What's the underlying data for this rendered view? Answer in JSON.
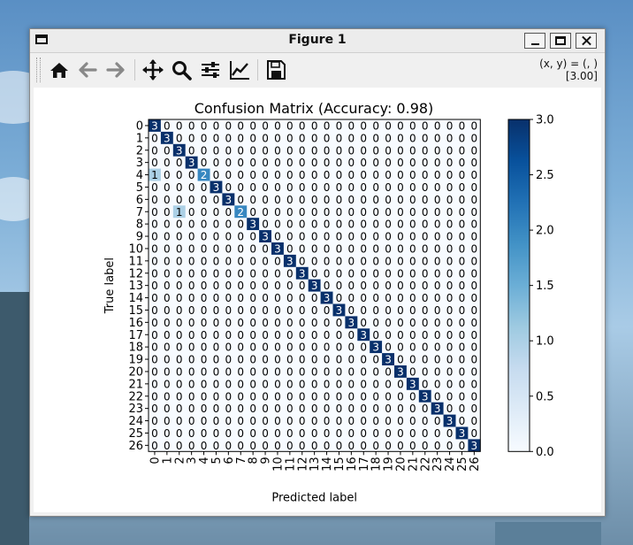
{
  "window": {
    "title": "Figure 1"
  },
  "toolbar": {
    "buttons": [
      {
        "id": "home",
        "icon": "home-icon"
      },
      {
        "id": "back",
        "icon": "arrow-left-icon"
      },
      {
        "id": "forward",
        "icon": "arrow-right-icon"
      },
      {
        "id": "pan",
        "icon": "move-icon"
      },
      {
        "id": "zoom",
        "icon": "zoom-icon"
      },
      {
        "id": "configure",
        "icon": "sliders-icon"
      },
      {
        "id": "edit",
        "icon": "chart-line-icon"
      },
      {
        "id": "save",
        "icon": "save-icon"
      }
    ],
    "coord_line1": "(x, y) = (, )",
    "coord_line2": "[3.00]"
  },
  "chart_data": {
    "type": "heatmap",
    "title": "Confusion Matrix (Accuracy: 0.98)",
    "xlabel": "Predicted label",
    "ylabel": "True label",
    "labels": [
      "0",
      "1",
      "2",
      "3",
      "4",
      "5",
      "6",
      "7",
      "8",
      "9",
      "10",
      "11",
      "12",
      "13",
      "14",
      "15",
      "16",
      "17",
      "18",
      "19",
      "20",
      "21",
      "22",
      "23",
      "24",
      "25",
      "26"
    ],
    "matrix": [
      [
        3,
        0,
        0,
        0,
        0,
        0,
        0,
        0,
        0,
        0,
        0,
        0,
        0,
        0,
        0,
        0,
        0,
        0,
        0,
        0,
        0,
        0,
        0,
        0,
        0,
        0,
        0
      ],
      [
        0,
        3,
        0,
        0,
        0,
        0,
        0,
        0,
        0,
        0,
        0,
        0,
        0,
        0,
        0,
        0,
        0,
        0,
        0,
        0,
        0,
        0,
        0,
        0,
        0,
        0,
        0
      ],
      [
        0,
        0,
        3,
        0,
        0,
        0,
        0,
        0,
        0,
        0,
        0,
        0,
        0,
        0,
        0,
        0,
        0,
        0,
        0,
        0,
        0,
        0,
        0,
        0,
        0,
        0,
        0
      ],
      [
        0,
        0,
        0,
        3,
        0,
        0,
        0,
        0,
        0,
        0,
        0,
        0,
        0,
        0,
        0,
        0,
        0,
        0,
        0,
        0,
        0,
        0,
        0,
        0,
        0,
        0,
        0
      ],
      [
        1,
        0,
        0,
        0,
        2,
        0,
        0,
        0,
        0,
        0,
        0,
        0,
        0,
        0,
        0,
        0,
        0,
        0,
        0,
        0,
        0,
        0,
        0,
        0,
        0,
        0,
        0
      ],
      [
        0,
        0,
        0,
        0,
        0,
        3,
        0,
        0,
        0,
        0,
        0,
        0,
        0,
        0,
        0,
        0,
        0,
        0,
        0,
        0,
        0,
        0,
        0,
        0,
        0,
        0,
        0
      ],
      [
        0,
        0,
        0,
        0,
        0,
        0,
        3,
        0,
        0,
        0,
        0,
        0,
        0,
        0,
        0,
        0,
        0,
        0,
        0,
        0,
        0,
        0,
        0,
        0,
        0,
        0,
        0
      ],
      [
        0,
        0,
        1,
        0,
        0,
        0,
        0,
        2,
        0,
        0,
        0,
        0,
        0,
        0,
        0,
        0,
        0,
        0,
        0,
        0,
        0,
        0,
        0,
        0,
        0,
        0,
        0
      ],
      [
        0,
        0,
        0,
        0,
        0,
        0,
        0,
        0,
        3,
        0,
        0,
        0,
        0,
        0,
        0,
        0,
        0,
        0,
        0,
        0,
        0,
        0,
        0,
        0,
        0,
        0,
        0
      ],
      [
        0,
        0,
        0,
        0,
        0,
        0,
        0,
        0,
        0,
        3,
        0,
        0,
        0,
        0,
        0,
        0,
        0,
        0,
        0,
        0,
        0,
        0,
        0,
        0,
        0,
        0,
        0
      ],
      [
        0,
        0,
        0,
        0,
        0,
        0,
        0,
        0,
        0,
        0,
        3,
        0,
        0,
        0,
        0,
        0,
        0,
        0,
        0,
        0,
        0,
        0,
        0,
        0,
        0,
        0,
        0
      ],
      [
        0,
        0,
        0,
        0,
        0,
        0,
        0,
        0,
        0,
        0,
        0,
        3,
        0,
        0,
        0,
        0,
        0,
        0,
        0,
        0,
        0,
        0,
        0,
        0,
        0,
        0,
        0
      ],
      [
        0,
        0,
        0,
        0,
        0,
        0,
        0,
        0,
        0,
        0,
        0,
        0,
        3,
        0,
        0,
        0,
        0,
        0,
        0,
        0,
        0,
        0,
        0,
        0,
        0,
        0,
        0
      ],
      [
        0,
        0,
        0,
        0,
        0,
        0,
        0,
        0,
        0,
        0,
        0,
        0,
        0,
        3,
        0,
        0,
        0,
        0,
        0,
        0,
        0,
        0,
        0,
        0,
        0,
        0,
        0
      ],
      [
        0,
        0,
        0,
        0,
        0,
        0,
        0,
        0,
        0,
        0,
        0,
        0,
        0,
        0,
        3,
        0,
        0,
        0,
        0,
        0,
        0,
        0,
        0,
        0,
        0,
        0,
        0
      ],
      [
        0,
        0,
        0,
        0,
        0,
        0,
        0,
        0,
        0,
        0,
        0,
        0,
        0,
        0,
        0,
        3,
        0,
        0,
        0,
        0,
        0,
        0,
        0,
        0,
        0,
        0,
        0
      ],
      [
        0,
        0,
        0,
        0,
        0,
        0,
        0,
        0,
        0,
        0,
        0,
        0,
        0,
        0,
        0,
        0,
        3,
        0,
        0,
        0,
        0,
        0,
        0,
        0,
        0,
        0,
        0
      ],
      [
        0,
        0,
        0,
        0,
        0,
        0,
        0,
        0,
        0,
        0,
        0,
        0,
        0,
        0,
        0,
        0,
        0,
        3,
        0,
        0,
        0,
        0,
        0,
        0,
        0,
        0,
        0
      ],
      [
        0,
        0,
        0,
        0,
        0,
        0,
        0,
        0,
        0,
        0,
        0,
        0,
        0,
        0,
        0,
        0,
        0,
        0,
        3,
        0,
        0,
        0,
        0,
        0,
        0,
        0,
        0
      ],
      [
        0,
        0,
        0,
        0,
        0,
        0,
        0,
        0,
        0,
        0,
        0,
        0,
        0,
        0,
        0,
        0,
        0,
        0,
        0,
        3,
        0,
        0,
        0,
        0,
        0,
        0,
        0
      ],
      [
        0,
        0,
        0,
        0,
        0,
        0,
        0,
        0,
        0,
        0,
        0,
        0,
        0,
        0,
        0,
        0,
        0,
        0,
        0,
        0,
        3,
        0,
        0,
        0,
        0,
        0,
        0
      ],
      [
        0,
        0,
        0,
        0,
        0,
        0,
        0,
        0,
        0,
        0,
        0,
        0,
        0,
        0,
        0,
        0,
        0,
        0,
        0,
        0,
        0,
        3,
        0,
        0,
        0,
        0,
        0
      ],
      [
        0,
        0,
        0,
        0,
        0,
        0,
        0,
        0,
        0,
        0,
        0,
        0,
        0,
        0,
        0,
        0,
        0,
        0,
        0,
        0,
        0,
        0,
        3,
        0,
        0,
        0,
        0
      ],
      [
        0,
        0,
        0,
        0,
        0,
        0,
        0,
        0,
        0,
        0,
        0,
        0,
        0,
        0,
        0,
        0,
        0,
        0,
        0,
        0,
        0,
        0,
        0,
        3,
        0,
        0,
        0
      ],
      [
        0,
        0,
        0,
        0,
        0,
        0,
        0,
        0,
        0,
        0,
        0,
        0,
        0,
        0,
        0,
        0,
        0,
        0,
        0,
        0,
        0,
        0,
        0,
        0,
        3,
        0,
        0
      ],
      [
        0,
        0,
        0,
        0,
        0,
        0,
        0,
        0,
        0,
        0,
        0,
        0,
        0,
        0,
        0,
        0,
        0,
        0,
        0,
        0,
        0,
        0,
        0,
        0,
        0,
        3,
        0
      ],
      [
        0,
        0,
        0,
        0,
        0,
        0,
        0,
        0,
        0,
        0,
        0,
        0,
        0,
        0,
        0,
        0,
        0,
        0,
        0,
        0,
        0,
        0,
        0,
        0,
        0,
        0,
        3
      ]
    ],
    "vmin": 0,
    "vmax": 3,
    "colormap": "Blues",
    "colorbar_ticks": [
      "0.0",
      "0.5",
      "1.0",
      "1.5",
      "2.0",
      "2.5",
      "3.0"
    ],
    "legend": "colorbar-right",
    "grid": false
  }
}
